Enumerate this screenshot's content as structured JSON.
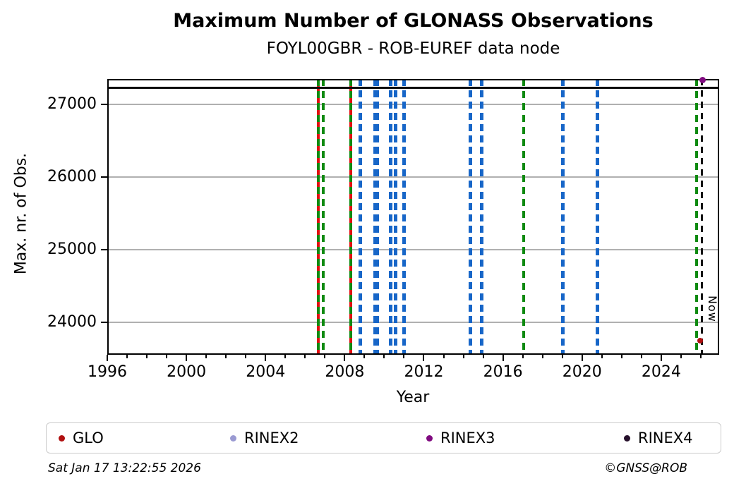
{
  "header": {
    "title": "Maximum Number of GLONASS Observations",
    "subtitle": "FOYL00GBR - ROB-EUREF data node"
  },
  "footer": {
    "timestamp": "Sat Jan 17 13:22:55 2026",
    "credit": "©GNSS@ROB"
  },
  "legend": {
    "items": [
      {
        "label": "GLO",
        "color": "#b01010",
        "icon": "glo-marker-icon"
      },
      {
        "label": "RINEX2",
        "color": "#9a9ad2",
        "icon": "rinex2-marker-icon"
      },
      {
        "label": "RINEX3",
        "color": "#800b80",
        "icon": "rinex3-marker-icon"
      },
      {
        "label": "RINEX4",
        "color": "#26102b",
        "icon": "rinex4-marker-icon"
      }
    ]
  },
  "chart_data": {
    "type": "line",
    "title": "Maximum Number of GLONASS Observations",
    "subtitle": "FOYL00GBR - ROB-EUREF data node",
    "xlabel": "Year",
    "ylabel": "Max. nr. of Obs.",
    "xlim": [
      1996,
      2026.93
    ],
    "ylim": [
      23548,
      27352
    ],
    "xticks_major": [
      1996,
      2000,
      2004,
      2008,
      2012,
      2016,
      2020,
      2024
    ],
    "xticks_minor": {
      "start": 1996,
      "end": 2026,
      "step": 1
    },
    "yticks": [
      24000,
      25000,
      26000,
      27000
    ],
    "grid": "horizontal-only",
    "grid_color": "#b0b0b0",
    "series": [
      {
        "name": "max-observations",
        "style": "hline",
        "y": 27230,
        "x_start": 1996,
        "x_end": 2026.93,
        "color": "#0d0d0d"
      }
    ],
    "points": [
      {
        "name": "rinex3-last-point",
        "x": 2026.08,
        "y": 27335,
        "color": "#800b80",
        "size": 9
      },
      {
        "name": "glo-last-point",
        "x": 2025.98,
        "y": 23740,
        "color": "#b01010",
        "size": 8
      }
    ],
    "event_lines": [
      {
        "x": 2006.68,
        "style": "green-red"
      },
      {
        "x": 2006.92,
        "style": "green"
      },
      {
        "x": 2008.29,
        "style": "green-red"
      },
      {
        "x": 2008.79,
        "style": "blue"
      },
      {
        "x": 2009.54,
        "style": "blue"
      },
      {
        "x": 2009.64,
        "style": "blue"
      },
      {
        "x": 2010.34,
        "style": "blue"
      },
      {
        "x": 2010.56,
        "style": "blue"
      },
      {
        "x": 2011.0,
        "style": "blue"
      },
      {
        "x": 2014.37,
        "style": "blue"
      },
      {
        "x": 2014.91,
        "style": "blue"
      },
      {
        "x": 2017.05,
        "style": "green"
      },
      {
        "x": 2019.04,
        "style": "blue"
      },
      {
        "x": 2020.79,
        "style": "blue"
      },
      {
        "x": 2025.79,
        "style": "green"
      }
    ],
    "now_marker": {
      "label": "Now",
      "x": 2026.07,
      "style": "black"
    },
    "style_colors": {
      "green": "#0e8a10",
      "red": "#e01010",
      "blue": "#1766c8",
      "black": "#141414"
    }
  }
}
